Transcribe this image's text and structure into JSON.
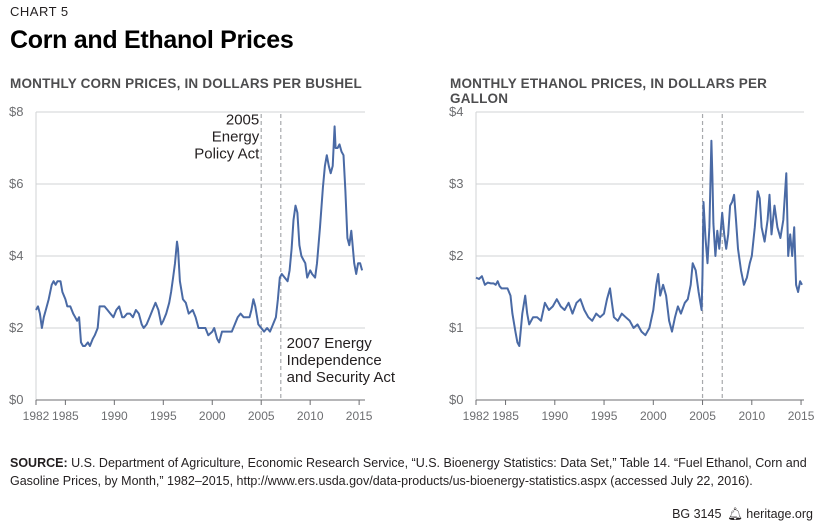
{
  "header": {
    "chart_label": "CHART 5",
    "title": "Corn and Ethanol Prices"
  },
  "source": {
    "label": "SOURCE:",
    "text": "U.S. Department of Agriculture, Economic Research Service, “U.S. Bioenergy Statistics: Data Set,” Table 14. “Fuel Ethanol, Corn and Gasoline Prices, by Month,” 1982–2015, http://www.ers.usda.gov/data-products/us-bioenergy-statistics.aspx (accessed July 22, 2016)."
  },
  "footer": {
    "id": "BG 3145",
    "site": "heritage.org"
  },
  "colors": {
    "line": "#4a6aa5",
    "grid": "#d1d3d4",
    "axis": "#6d6e71",
    "vline": "#a7a9ac"
  },
  "chart_data": [
    {
      "type": "line",
      "title": "MONTHLY CORN PRICES, IN DOLLARS PER BUSHEL",
      "xlim": [
        1982,
        2015.6
      ],
      "ylim": [
        0,
        8
      ],
      "xticks": [
        1982,
        1985,
        1990,
        1995,
        2000,
        2005,
        2010,
        2015
      ],
      "yticks": [
        {
          "v": 0,
          "label": "$0"
        },
        {
          "v": 2,
          "label": "$2"
        },
        {
          "v": 4,
          "label": "$4"
        },
        {
          "v": 6,
          "label": "$6"
        },
        {
          "v": 8,
          "label": "$8"
        }
      ],
      "vlines": [
        2005.0,
        2007.0
      ],
      "annotations": [
        {
          "lines": [
            "2005",
            "Energy",
            "Policy Act"
          ],
          "x": 2004.8,
          "y": 7.65,
          "anchor": "end"
        },
        {
          "lines": [
            "2007 Energy",
            "Independence",
            "and Security Act"
          ],
          "x": 2007.6,
          "y": 1.45,
          "anchor": "start"
        }
      ],
      "points": [
        [
          1982.0,
          2.5
        ],
        [
          1982.2,
          2.6
        ],
        [
          1982.4,
          2.4
        ],
        [
          1982.6,
          2.0
        ],
        [
          1982.8,
          2.3
        ],
        [
          1983.0,
          2.5
        ],
        [
          1983.3,
          2.8
        ],
        [
          1983.6,
          3.2
        ],
        [
          1983.8,
          3.3
        ],
        [
          1984.0,
          3.2
        ],
        [
          1984.2,
          3.3
        ],
        [
          1984.5,
          3.3
        ],
        [
          1984.7,
          3.0
        ],
        [
          1985.0,
          2.8
        ],
        [
          1985.2,
          2.6
        ],
        [
          1985.5,
          2.6
        ],
        [
          1985.8,
          2.4
        ],
        [
          1986.0,
          2.3
        ],
        [
          1986.2,
          2.2
        ],
        [
          1986.4,
          2.3
        ],
        [
          1986.6,
          1.6
        ],
        [
          1986.8,
          1.5
        ],
        [
          1987.0,
          1.5
        ],
        [
          1987.3,
          1.6
        ],
        [
          1987.5,
          1.5
        ],
        [
          1987.8,
          1.7
        ],
        [
          1988.0,
          1.8
        ],
        [
          1988.3,
          2.0
        ],
        [
          1988.5,
          2.6
        ],
        [
          1988.8,
          2.6
        ],
        [
          1989.0,
          2.6
        ],
        [
          1989.3,
          2.5
        ],
        [
          1989.6,
          2.4
        ],
        [
          1989.9,
          2.3
        ],
        [
          1990.2,
          2.5
        ],
        [
          1990.5,
          2.6
        ],
        [
          1990.8,
          2.3
        ],
        [
          1991.0,
          2.3
        ],
        [
          1991.3,
          2.4
        ],
        [
          1991.6,
          2.4
        ],
        [
          1991.9,
          2.3
        ],
        [
          1992.2,
          2.5
        ],
        [
          1992.5,
          2.4
        ],
        [
          1992.8,
          2.1
        ],
        [
          1993.0,
          2.0
        ],
        [
          1993.3,
          2.1
        ],
        [
          1993.6,
          2.3
        ],
        [
          1993.9,
          2.5
        ],
        [
          1994.2,
          2.7
        ],
        [
          1994.5,
          2.5
        ],
        [
          1994.8,
          2.1
        ],
        [
          1995.0,
          2.2
        ],
        [
          1995.3,
          2.4
        ],
        [
          1995.6,
          2.7
        ],
        [
          1995.8,
          3.0
        ],
        [
          1996.0,
          3.4
        ],
        [
          1996.2,
          3.8
        ],
        [
          1996.4,
          4.4
        ],
        [
          1996.5,
          4.2
        ],
        [
          1996.7,
          3.3
        ],
        [
          1997.0,
          2.8
        ],
        [
          1997.3,
          2.7
        ],
        [
          1997.6,
          2.4
        ],
        [
          1998.0,
          2.5
        ],
        [
          1998.3,
          2.3
        ],
        [
          1998.6,
          2.0
        ],
        [
          1999.0,
          2.0
        ],
        [
          1999.3,
          2.0
        ],
        [
          1999.6,
          1.8
        ],
        [
          2000.0,
          1.9
        ],
        [
          2000.2,
          2.0
        ],
        [
          2000.5,
          1.7
        ],
        [
          2000.7,
          1.6
        ],
        [
          2001.0,
          1.9
        ],
        [
          2001.3,
          1.9
        ],
        [
          2001.6,
          1.9
        ],
        [
          2002.0,
          1.9
        ],
        [
          2002.3,
          2.1
        ],
        [
          2002.6,
          2.3
        ],
        [
          2002.9,
          2.4
        ],
        [
          2003.2,
          2.3
        ],
        [
          2003.5,
          2.3
        ],
        [
          2003.8,
          2.3
        ],
        [
          2004.0,
          2.5
        ],
        [
          2004.2,
          2.8
        ],
        [
          2004.4,
          2.6
        ],
        [
          2004.7,
          2.1
        ],
        [
          2005.0,
          2.0
        ],
        [
          2005.3,
          1.9
        ],
        [
          2005.6,
          2.0
        ],
        [
          2005.9,
          1.9
        ],
        [
          2006.2,
          2.1
        ],
        [
          2006.5,
          2.3
        ],
        [
          2006.7,
          2.8
        ],
        [
          2006.9,
          3.4
        ],
        [
          2007.1,
          3.5
        ],
        [
          2007.4,
          3.4
        ],
        [
          2007.7,
          3.3
        ],
        [
          2007.9,
          3.6
        ],
        [
          2008.1,
          4.2
        ],
        [
          2008.3,
          5.0
        ],
        [
          2008.5,
          5.4
        ],
        [
          2008.7,
          5.2
        ],
        [
          2008.9,
          4.3
        ],
        [
          2009.1,
          4.0
        ],
        [
          2009.3,
          3.9
        ],
        [
          2009.5,
          3.8
        ],
        [
          2009.7,
          3.4
        ],
        [
          2010.0,
          3.6
        ],
        [
          2010.2,
          3.5
        ],
        [
          2010.5,
          3.4
        ],
        [
          2010.7,
          3.8
        ],
        [
          2011.0,
          4.8
        ],
        [
          2011.3,
          5.9
        ],
        [
          2011.5,
          6.5
        ],
        [
          2011.7,
          6.8
        ],
        [
          2011.9,
          6.5
        ],
        [
          2012.1,
          6.3
        ],
        [
          2012.3,
          6.5
        ],
        [
          2012.5,
          7.6
        ],
        [
          2012.6,
          7.0
        ],
        [
          2012.8,
          7.0
        ],
        [
          2013.0,
          7.1
        ],
        [
          2013.2,
          6.9
        ],
        [
          2013.4,
          6.8
        ],
        [
          2013.6,
          5.8
        ],
        [
          2013.8,
          4.5
        ],
        [
          2014.0,
          4.3
        ],
        [
          2014.2,
          4.7
        ],
        [
          2014.3,
          4.4
        ],
        [
          2014.5,
          3.8
        ],
        [
          2014.7,
          3.5
        ],
        [
          2014.9,
          3.8
        ],
        [
          2015.1,
          3.8
        ],
        [
          2015.3,
          3.6
        ]
      ]
    },
    {
      "type": "line",
      "title": "MONTHLY ETHANOL PRICES, IN DOLLARS PER GALLON",
      "xlim": [
        1982,
        2015.3
      ],
      "ylim": [
        0,
        4
      ],
      "xticks": [
        1982,
        1985,
        1990,
        1995,
        2000,
        2005,
        2010,
        2015
      ],
      "yticks": [
        {
          "v": 0,
          "label": "$0"
        },
        {
          "v": 1,
          "label": "$1"
        },
        {
          "v": 2,
          "label": "$2"
        },
        {
          "v": 3,
          "label": "$3"
        },
        {
          "v": 4,
          "label": "$4"
        }
      ],
      "vlines": [
        2005.0,
        2007.0
      ],
      "annotations": [],
      "points": [
        [
          1982.0,
          1.7
        ],
        [
          1982.3,
          1.68
        ],
        [
          1982.6,
          1.72
        ],
        [
          1982.9,
          1.6
        ],
        [
          1983.2,
          1.63
        ],
        [
          1983.5,
          1.62
        ],
        [
          1983.8,
          1.62
        ],
        [
          1984.0,
          1.6
        ],
        [
          1984.2,
          1.65
        ],
        [
          1984.4,
          1.58
        ],
        [
          1984.6,
          1.55
        ],
        [
          1984.9,
          1.55
        ],
        [
          1985.2,
          1.55
        ],
        [
          1985.5,
          1.45
        ],
        [
          1985.7,
          1.2
        ],
        [
          1986.0,
          0.95
        ],
        [
          1986.2,
          0.8
        ],
        [
          1986.4,
          0.75
        ],
        [
          1986.7,
          1.2
        ],
        [
          1987.0,
          1.45
        ],
        [
          1987.2,
          1.2
        ],
        [
          1987.4,
          1.05
        ],
        [
          1987.8,
          1.15
        ],
        [
          1988.2,
          1.15
        ],
        [
          1988.6,
          1.1
        ],
        [
          1989.0,
          1.35
        ],
        [
          1989.4,
          1.25
        ],
        [
          1989.8,
          1.3
        ],
        [
          1990.2,
          1.4
        ],
        [
          1990.6,
          1.3
        ],
        [
          1991.0,
          1.25
        ],
        [
          1991.4,
          1.35
        ],
        [
          1991.8,
          1.2
        ],
        [
          1992.2,
          1.35
        ],
        [
          1992.6,
          1.4
        ],
        [
          1993.0,
          1.25
        ],
        [
          1993.4,
          1.15
        ],
        [
          1993.8,
          1.1
        ],
        [
          1994.2,
          1.2
        ],
        [
          1994.6,
          1.15
        ],
        [
          1995.0,
          1.2
        ],
        [
          1995.3,
          1.4
        ],
        [
          1995.6,
          1.55
        ],
        [
          1995.8,
          1.35
        ],
        [
          1996.0,
          1.15
        ],
        [
          1996.4,
          1.1
        ],
        [
          1996.8,
          1.2
        ],
        [
          1997.2,
          1.15
        ],
        [
          1997.6,
          1.1
        ],
        [
          1998.0,
          1.0
        ],
        [
          1998.4,
          1.05
        ],
        [
          1998.8,
          0.95
        ],
        [
          1999.2,
          0.9
        ],
        [
          1999.6,
          1.0
        ],
        [
          2000.0,
          1.25
        ],
        [
          2000.3,
          1.6
        ],
        [
          2000.5,
          1.75
        ],
        [
          2000.7,
          1.45
        ],
        [
          2001.0,
          1.6
        ],
        [
          2001.3,
          1.45
        ],
        [
          2001.6,
          1.1
        ],
        [
          2001.9,
          0.95
        ],
        [
          2002.2,
          1.15
        ],
        [
          2002.5,
          1.3
        ],
        [
          2002.8,
          1.2
        ],
        [
          2003.2,
          1.35
        ],
        [
          2003.5,
          1.4
        ],
        [
          2003.8,
          1.6
        ],
        [
          2004.0,
          1.9
        ],
        [
          2004.3,
          1.8
        ],
        [
          2004.6,
          1.5
        ],
        [
          2004.9,
          1.25
        ],
        [
          2005.0,
          1.75
        ],
        [
          2005.1,
          2.75
        ],
        [
          2005.3,
          2.25
        ],
        [
          2005.5,
          1.9
        ],
        [
          2005.7,
          2.4
        ],
        [
          2005.9,
          3.6
        ],
        [
          2006.0,
          3.1
        ],
        [
          2006.1,
          2.45
        ],
        [
          2006.3,
          2.0
        ],
        [
          2006.5,
          2.35
        ],
        [
          2006.7,
          2.1
        ],
        [
          2007.0,
          2.6
        ],
        [
          2007.2,
          2.3
        ],
        [
          2007.4,
          2.1
        ],
        [
          2007.6,
          2.3
        ],
        [
          2007.8,
          2.7
        ],
        [
          2008.0,
          2.75
        ],
        [
          2008.2,
          2.85
        ],
        [
          2008.4,
          2.5
        ],
        [
          2008.6,
          2.1
        ],
        [
          2008.9,
          1.8
        ],
        [
          2009.2,
          1.6
        ],
        [
          2009.5,
          1.7
        ],
        [
          2009.8,
          1.9
        ],
        [
          2010.0,
          2.0
        ],
        [
          2010.3,
          2.4
        ],
        [
          2010.6,
          2.9
        ],
        [
          2010.8,
          2.8
        ],
        [
          2011.0,
          2.4
        ],
        [
          2011.3,
          2.2
        ],
        [
          2011.6,
          2.5
        ],
        [
          2011.8,
          2.85
        ],
        [
          2012.0,
          2.3
        ],
        [
          2012.3,
          2.7
        ],
        [
          2012.6,
          2.4
        ],
        [
          2012.9,
          2.25
        ],
        [
          2013.2,
          2.5
        ],
        [
          2013.5,
          3.15
        ],
        [
          2013.7,
          2.0
        ],
        [
          2013.9,
          2.3
        ],
        [
          2014.1,
          2.0
        ],
        [
          2014.3,
          2.4
        ],
        [
          2014.5,
          1.6
        ],
        [
          2014.7,
          1.5
        ],
        [
          2014.9,
          1.65
        ],
        [
          2015.1,
          1.6
        ]
      ]
    }
  ]
}
